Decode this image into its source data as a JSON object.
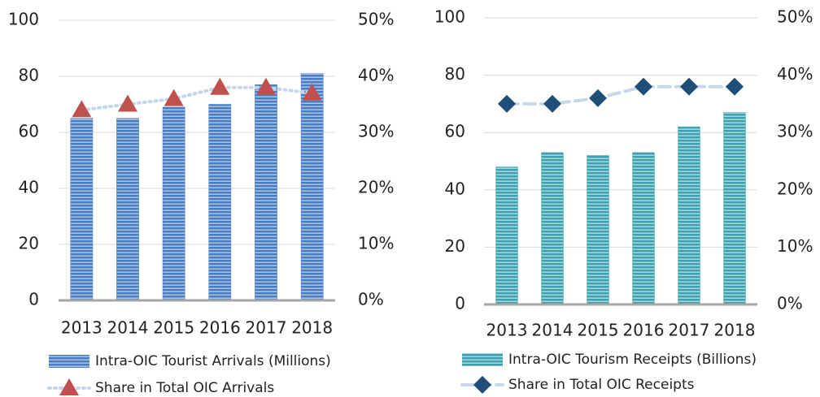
{
  "chart_data": [
    {
      "type": "bar",
      "categories": [
        "2013",
        "2014",
        "2015",
        "2016",
        "2017",
        "2018"
      ],
      "ylim": [
        0,
        100
      ],
      "yticks": [
        0,
        20,
        40,
        60,
        80,
        100
      ],
      "y2lim": [
        0,
        50
      ],
      "y2ticks": [
        {
          "value": 0,
          "label": "0%"
        },
        {
          "value": 10,
          "label": "10%"
        },
        {
          "value": 20,
          "label": "20%"
        },
        {
          "value": 30,
          "label": "30%"
        },
        {
          "value": 40,
          "label": "40%"
        },
        {
          "value": 50,
          "label": "50%"
        }
      ],
      "grid": true,
      "series": [
        {
          "name": "Intra-OIC Tourist Arrivals (Millions)",
          "type": "bar",
          "color": "#4a7cc2",
          "values": [
            65,
            65,
            69,
            70,
            77,
            81
          ]
        },
        {
          "name": "Share in Total OIC Arrivals",
          "type": "line",
          "axis": "y2",
          "color": "#c5d6ea",
          "marker": "triangle",
          "marker_color": "#c0504d",
          "line_style": "dotted",
          "values": [
            34,
            35,
            36,
            38,
            38,
            37
          ]
        }
      ]
    },
    {
      "type": "bar",
      "categories": [
        "2013",
        "2014",
        "2015",
        "2016",
        "2017",
        "2018"
      ],
      "ylim": [
        0,
        100
      ],
      "yticks": [
        0,
        20,
        40,
        60,
        80,
        100
      ],
      "y2lim": [
        0,
        50
      ],
      "y2ticks": [
        {
          "value": 0,
          "label": "0%"
        },
        {
          "value": 10,
          "label": "10%"
        },
        {
          "value": 20,
          "label": "20%"
        },
        {
          "value": 30,
          "label": "30%"
        },
        {
          "value": 40,
          "label": "40%"
        },
        {
          "value": 50,
          "label": "50%"
        }
      ],
      "grid": true,
      "series": [
        {
          "name": "Intra-OIC Tourism Receipts (Billions)",
          "type": "bar",
          "color": "#3fa0ae",
          "values": [
            48,
            53,
            52,
            53,
            62,
            67
          ]
        },
        {
          "name": "Share in Total OIC Receipts",
          "type": "line",
          "axis": "y2",
          "color": "#c8d8ea",
          "marker": "diamond",
          "marker_color": "#1f4e79",
          "line_style": "dashed",
          "values": [
            35,
            35,
            36,
            38,
            38,
            38
          ]
        }
      ]
    }
  ]
}
